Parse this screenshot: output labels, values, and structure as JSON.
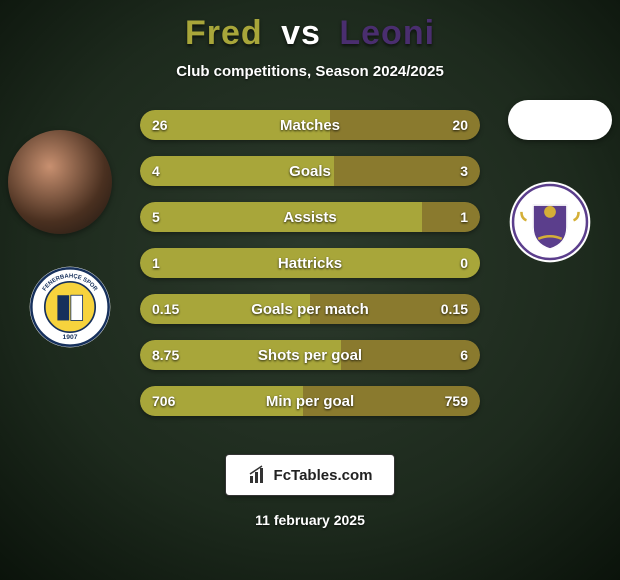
{
  "title": {
    "player1": "Fred",
    "vs": "vs",
    "player2": "Leoni",
    "color_p1": "#a8a63a",
    "color_vs": "#ffffff",
    "color_p2": "#4a2e6f"
  },
  "subtitle": "Club competitions, Season 2024/2025",
  "background": {
    "base": "#1d2a1d",
    "vignette": "#0a120a"
  },
  "bar_style": {
    "track_bg": "#3a3f2a",
    "left_color": "#a8a63a",
    "right_color": "#8a7a2e",
    "height": 30,
    "radius": 15,
    "label_fontsize": 15,
    "value_fontsize": 14,
    "text_color": "#ffffff"
  },
  "rows": [
    {
      "label": "Matches",
      "left": "26",
      "right": "20",
      "lw": 56,
      "rw": 44
    },
    {
      "label": "Goals",
      "left": "4",
      "right": "3",
      "lw": 57,
      "rw": 43
    },
    {
      "label": "Assists",
      "left": "5",
      "right": "1",
      "lw": 83,
      "rw": 17
    },
    {
      "label": "Hattricks",
      "left": "1",
      "right": "0",
      "lw": 100,
      "rw": 0
    },
    {
      "label": "Goals per match",
      "left": "0.15",
      "right": "0.15",
      "lw": 50,
      "rw": 50
    },
    {
      "label": "Shots per goal",
      "left": "8.75",
      "right": "6",
      "lw": 59,
      "rw": 41
    },
    {
      "label": "Min per goal",
      "left": "706",
      "right": "759",
      "lw": 48,
      "rw": 52
    }
  ],
  "footer": {
    "brand": "FcTables.com",
    "date": "11 february 2025"
  },
  "clubs": {
    "left_badge_text": "FENERBAHÇE SPOR KULÜBÜ 1907",
    "left_colors": {
      "outer": "#ffffff",
      "ring": "#16305c",
      "inner": "#f7d33d"
    },
    "right_colors": {
      "outer": "#ffffff",
      "shield": "#5b3e8c",
      "accent": "#d4af37"
    }
  }
}
